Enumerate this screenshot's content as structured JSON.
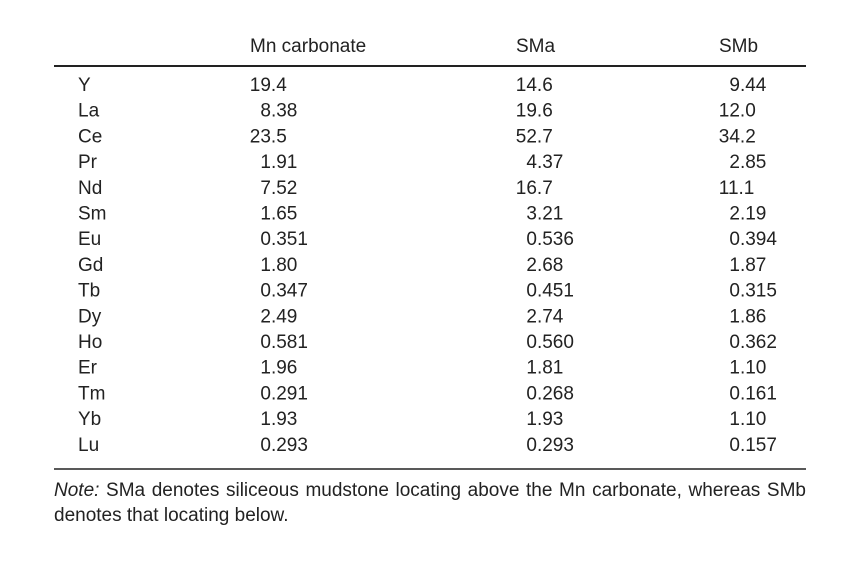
{
  "table": {
    "header": [
      "Mn carbonate",
      "SMa",
      "SMb"
    ],
    "rows": [
      [
        "Y",
        "19.4",
        "14.6",
        "9.44"
      ],
      [
        "La",
        "8.38",
        "19.6",
        "12.0"
      ],
      [
        "Ce",
        "23.5",
        "52.7",
        "34.2"
      ],
      [
        "Pr",
        "1.91",
        "4.37",
        "2.85"
      ],
      [
        "Nd",
        "7.52",
        "16.7",
        "11.1"
      ],
      [
        "Sm",
        "1.65",
        "3.21",
        "2.19"
      ],
      [
        "Eu",
        "0.351",
        "0.536",
        "0.394"
      ],
      [
        "Gd",
        "1.80",
        "2.68",
        "1.87"
      ],
      [
        "Tb",
        "0.347",
        "0.451",
        "0.315"
      ],
      [
        "Dy",
        "2.49",
        "2.74",
        "1.86"
      ],
      [
        "Ho",
        "0.581",
        "0.560",
        "0.362"
      ],
      [
        "Er",
        "1.96",
        "1.81",
        "1.10"
      ],
      [
        "Tm",
        "0.291",
        "0.268",
        "0.161"
      ],
      [
        "Yb",
        "1.93",
        "1.93",
        "1.10"
      ],
      [
        "Lu",
        "0.293",
        "0.293",
        "0.157"
      ]
    ]
  },
  "note": {
    "label": "Note:",
    "text": "SMa denotes siliceous mudstone locating above the Mn carbonate, whereas SMb denotes that locating below."
  }
}
